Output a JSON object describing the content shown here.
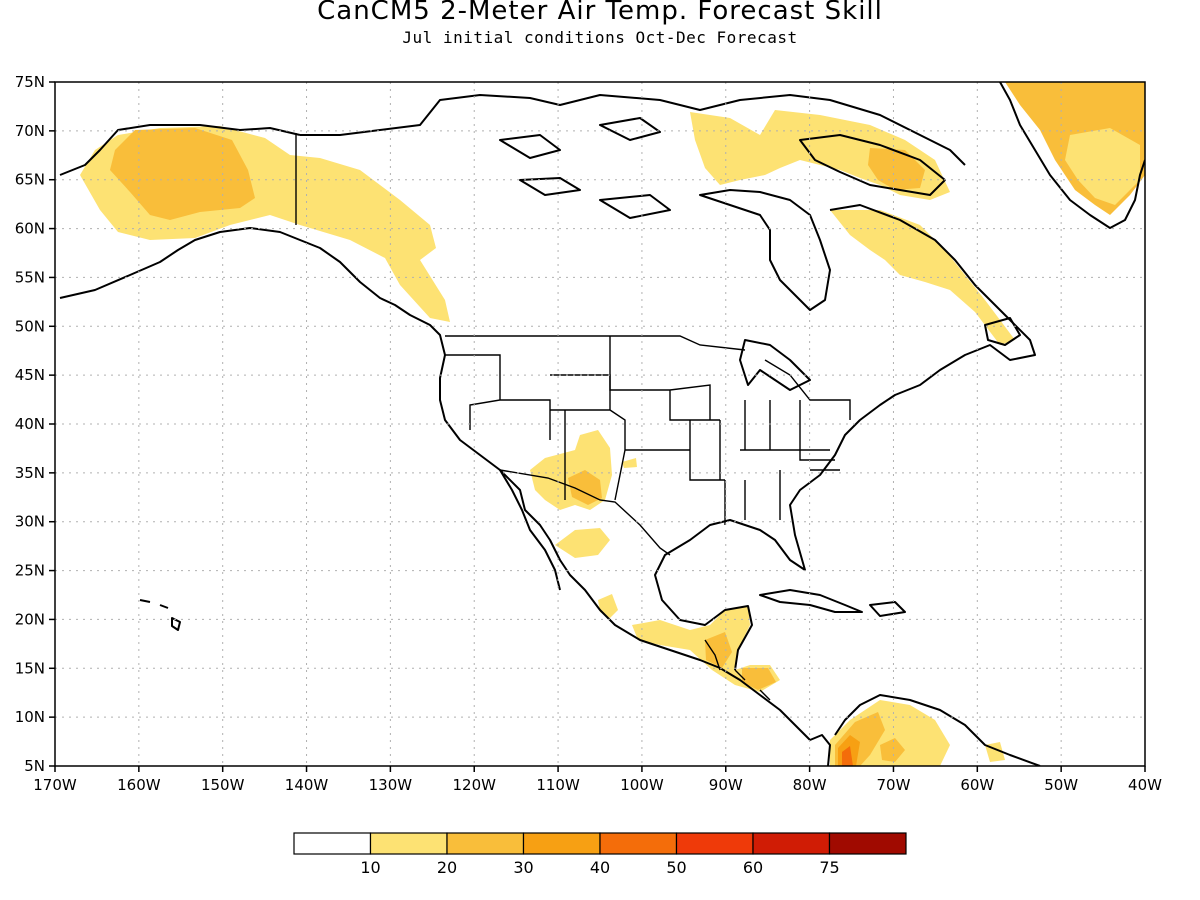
{
  "title": "CanCM5 2-Meter Air Temp. Forecast Skill",
  "subtitle": "Jul initial conditions  Oct-Dec Forecast",
  "lon_labels": [
    "170W",
    "160W",
    "150W",
    "140W",
    "130W",
    "120W",
    "110W",
    "100W",
    "90W",
    "80W",
    "70W",
    "60W",
    "50W",
    "40W"
  ],
  "lat_labels": [
    "5N",
    "10N",
    "15N",
    "20N",
    "25N",
    "30N",
    "35N",
    "40N",
    "45N",
    "50N",
    "55N",
    "60N",
    "65N",
    "70N",
    "75N"
  ],
  "map_extent": {
    "lon": [
      -170,
      -40
    ],
    "lat": [
      5,
      75
    ]
  },
  "grid": "dotted",
  "legend": {
    "labels": [
      "10",
      "20",
      "30",
      "40",
      "50",
      "60",
      "75"
    ],
    "colors": [
      "#ffffff",
      "#fde273",
      "#f9be3a",
      "#f7a013",
      "#f46d0a",
      "#ef3a09",
      "#d01c05",
      "#a00a00"
    ]
  },
  "colors": {
    "coastline": "#000000",
    "gridline": "#b0b0b0"
  }
}
